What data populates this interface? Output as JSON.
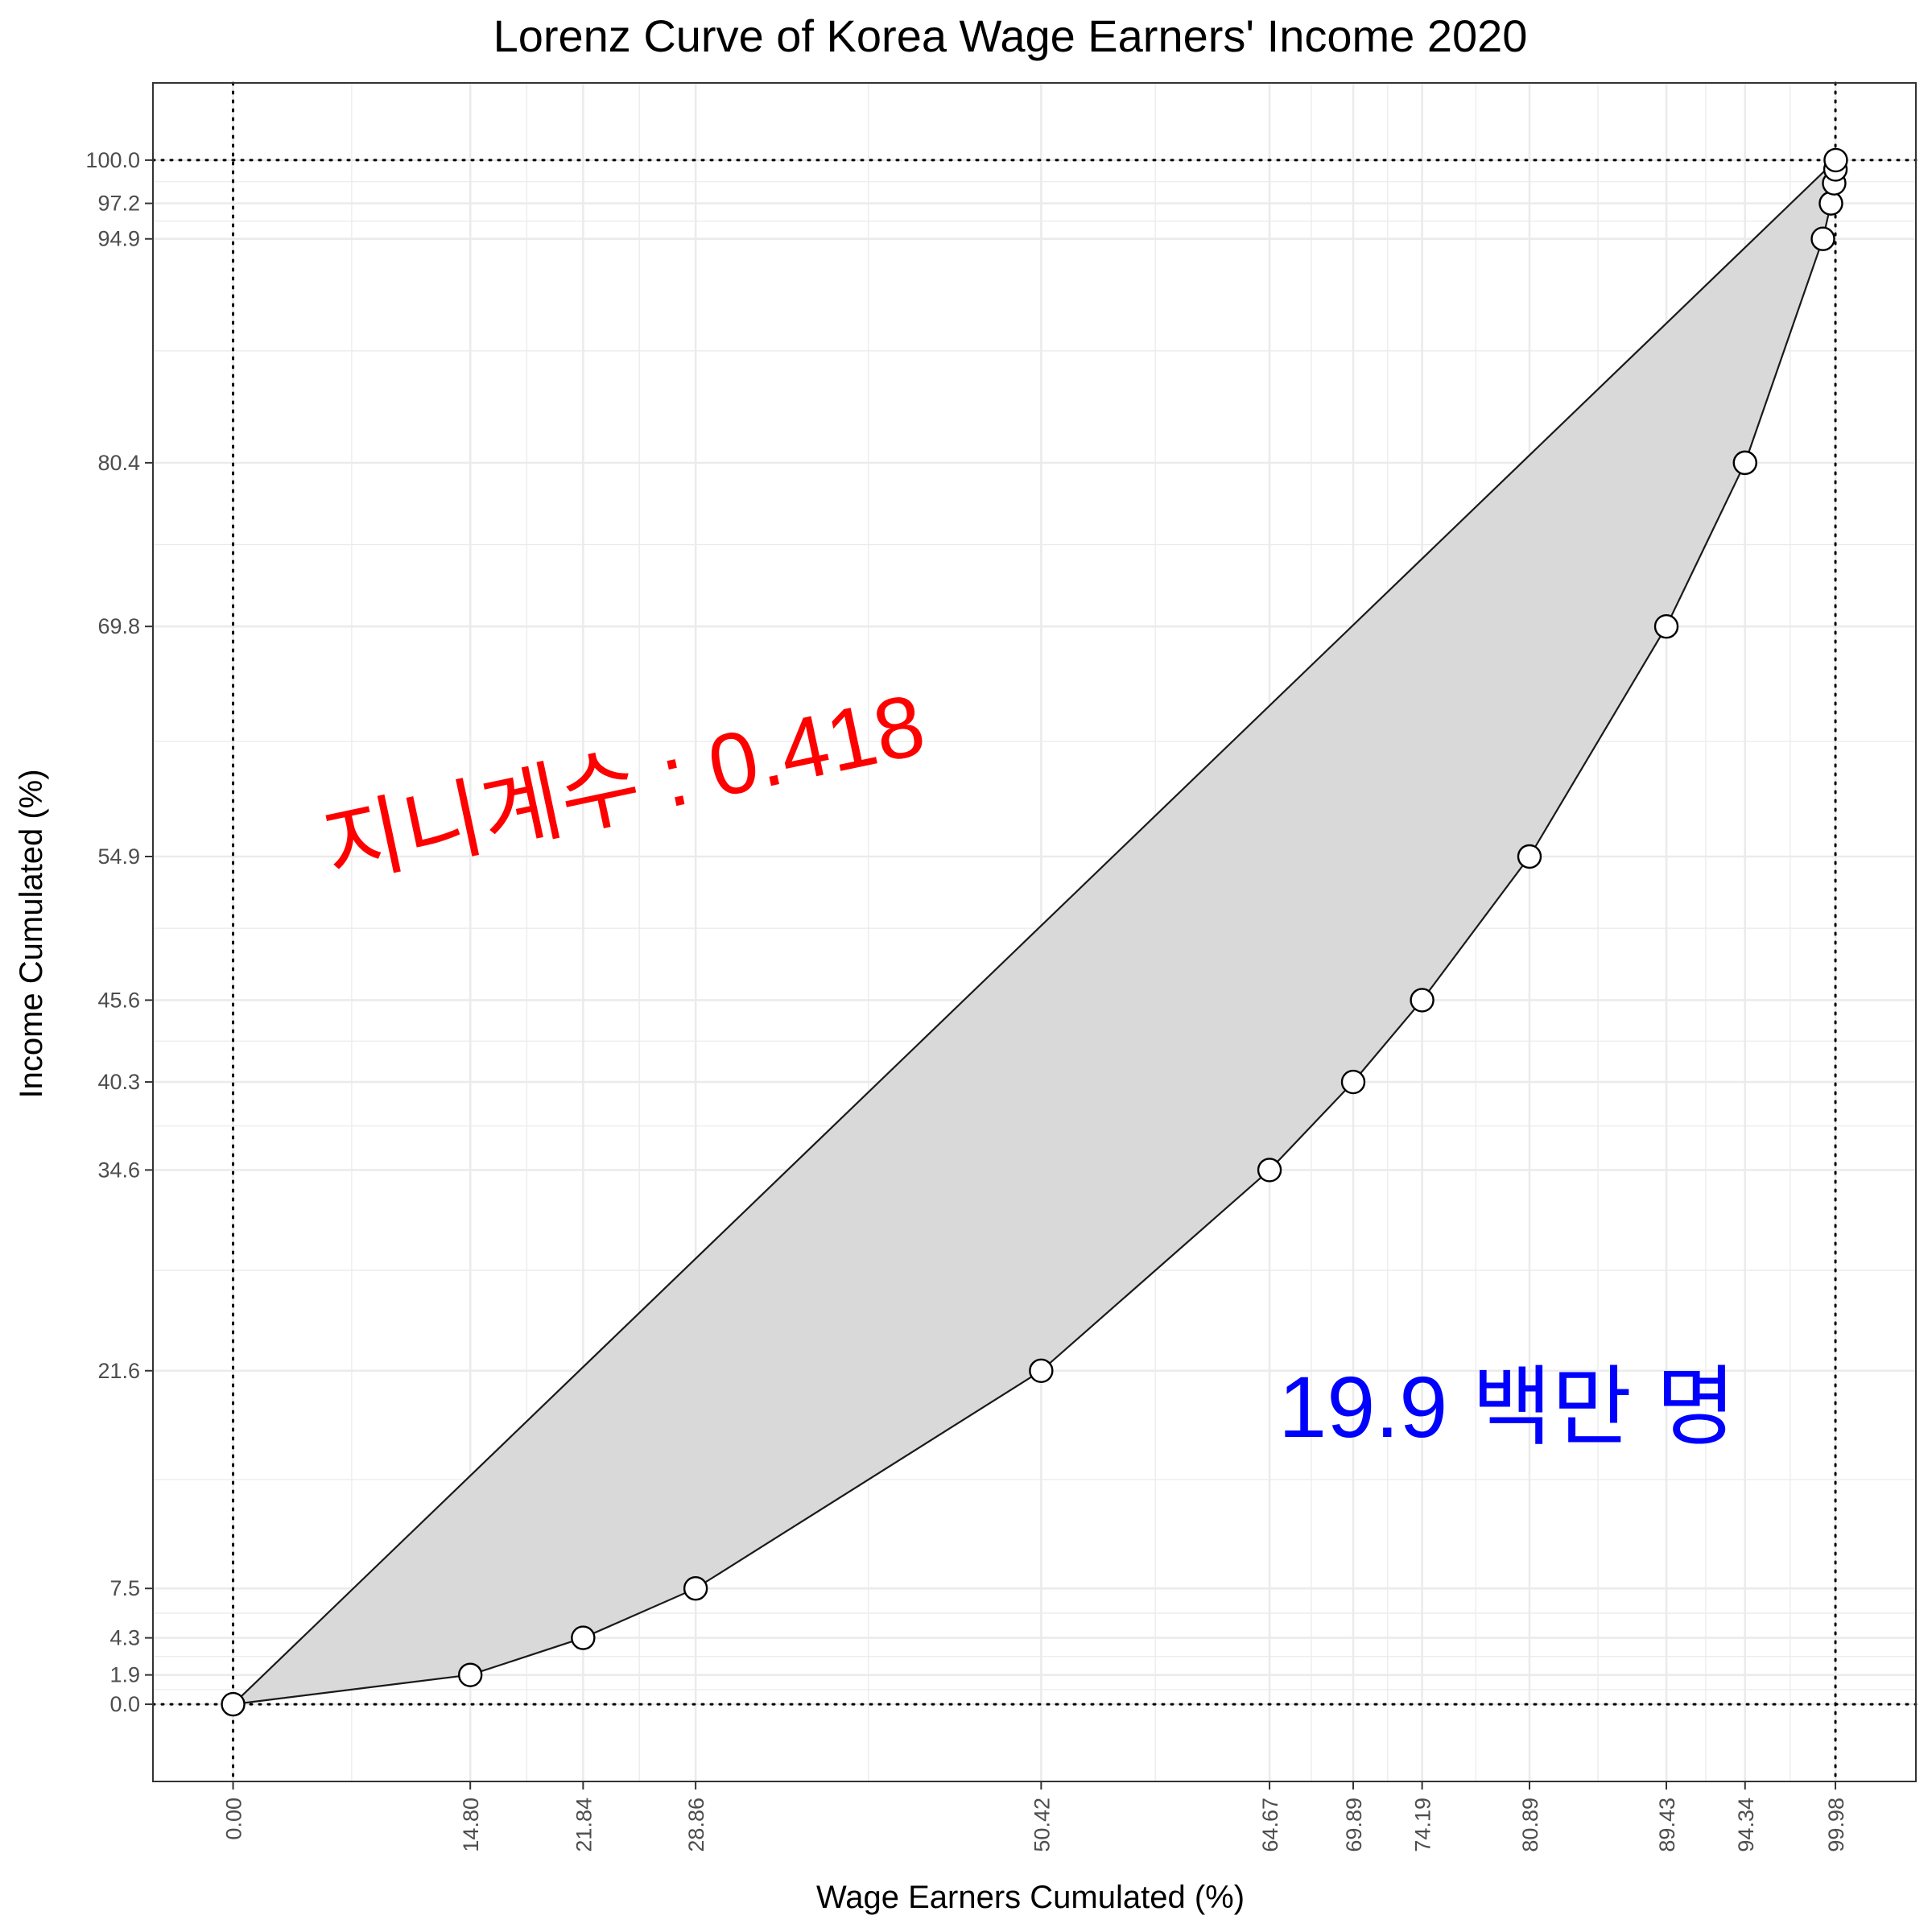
{
  "chart_data": {
    "type": "line",
    "title": "Lorenz Curve of Korea Wage Earners' Income 2020",
    "xlabel": "Wage Earners Cumulated (%)",
    "ylabel": "Income Cumulated (%)",
    "xlim": [
      -5,
      105
    ],
    "ylim": [
      -5,
      105
    ],
    "grid": true,
    "x_ticks": [
      "0.00",
      "14.80",
      "21.84",
      "28.86",
      "50.42",
      "64.67",
      "69.89",
      "74.19",
      "80.89",
      "89.43",
      "94.34",
      "99.98"
    ],
    "y_ticks": [
      "0.0",
      "1.9",
      "4.3",
      "7.5",
      "21.6",
      "34.6",
      "40.3",
      "45.6",
      "54.9",
      "69.8",
      "80.4",
      "94.9",
      "97.2",
      "100.0"
    ],
    "series": [
      {
        "x": [
          0,
          14.8,
          21.84,
          28.86,
          50.42,
          64.67,
          69.89,
          74.19,
          80.89,
          89.43,
          94.34,
          99.2,
          99.7,
          99.9,
          99.98,
          100
        ],
        "y": [
          0,
          1.9,
          4.3,
          7.5,
          21.6,
          34.6,
          40.3,
          45.6,
          54.9,
          69.8,
          80.4,
          94.9,
          97.2,
          98.5,
          99.4,
          100
        ]
      }
    ],
    "equality_line": {
      "x": [
        0,
        100
      ],
      "y": [
        0,
        100
      ]
    },
    "reference_lines": {
      "x": [
        0,
        99.98
      ],
      "y": [
        0,
        100
      ]
    },
    "annotations": [
      {
        "text": "지니계수 : 0.418",
        "x": 24.5,
        "y": 59,
        "color": "#ff0000",
        "angle": -12
      },
      {
        "text": "19.9 백만 명",
        "x": 79.5,
        "y": 18.8,
        "color": "#0000ff",
        "angle": 0
      }
    ],
    "colors": {
      "fill": "#d9d9d9",
      "line": "#1a1a1a",
      "marker_fill": "#ffffff",
      "marker_stroke": "#000000",
      "grid": "#ebebeb",
      "border": "#333333"
    }
  }
}
